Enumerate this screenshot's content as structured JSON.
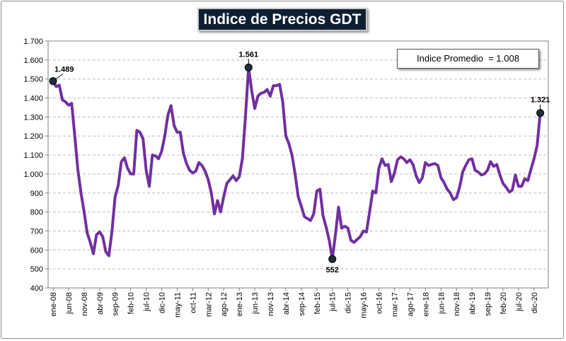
{
  "chart_data": {
    "type": "line",
    "title": "Indice de Precios GDT",
    "average_label": "Indice Promedio  = 1.008",
    "ylim": [
      400,
      1700
    ],
    "y_ticks": [
      "400",
      "500",
      "600",
      "700",
      "800",
      "900",
      "1.000",
      "1.100",
      "1.200",
      "1.300",
      "1.400",
      "1.500",
      "1.600",
      "1.700"
    ],
    "y_tick_values": [
      400,
      500,
      600,
      700,
      800,
      900,
      1000,
      1100,
      1200,
      1300,
      1400,
      1500,
      1600,
      1700
    ],
    "x_tick_labels": [
      "ene-08",
      "jun-08",
      "nov-08",
      "abr-09",
      "sep-09",
      "feb-10",
      "jul-10",
      "dic-10",
      "may-11",
      "oct-11",
      "mar-12",
      "ago-12",
      "ene-13",
      "jun-13",
      "nov-13",
      "abr-14",
      "sep-14",
      "feb-15",
      "jul-15",
      "dic-15",
      "may-16",
      "oct-16",
      "mar-17",
      "ago-17",
      "ene-18",
      "jun-18",
      "nov-18",
      "abr-19",
      "sep-19",
      "feb-20",
      "jul-20",
      "dic-20"
    ],
    "x_tick_index": [
      0,
      5,
      10,
      15,
      20,
      25,
      30,
      35,
      40,
      45,
      50,
      55,
      60,
      65,
      70,
      75,
      80,
      85,
      90,
      95,
      100,
      105,
      110,
      115,
      120,
      125,
      130,
      135,
      140,
      145,
      150,
      155
    ],
    "x_count": 159,
    "series": [
      {
        "name": "Indice de Precios GDT",
        "color": "#7030a0",
        "points": [
          [
            0,
            1489
          ],
          [
            1,
            1460
          ],
          [
            2,
            1468
          ],
          [
            3,
            1390
          ],
          [
            4,
            1380
          ],
          [
            5,
            1362
          ],
          [
            6,
            1372
          ],
          [
            7,
            1200
          ],
          [
            8,
            1020
          ],
          [
            9,
            900
          ],
          [
            10,
            800
          ],
          [
            11,
            690
          ],
          [
            12,
            640
          ],
          [
            13,
            580
          ],
          [
            14,
            680
          ],
          [
            15,
            695
          ],
          [
            16,
            670
          ],
          [
            17,
            590
          ],
          [
            18,
            570
          ],
          [
            19,
            700
          ],
          [
            20,
            880
          ],
          [
            21,
            940
          ],
          [
            22,
            1065
          ],
          [
            23,
            1085
          ],
          [
            24,
            1030
          ],
          [
            25,
            1000
          ],
          [
            26,
            1000
          ],
          [
            27,
            1230
          ],
          [
            28,
            1220
          ],
          [
            29,
            1185
          ],
          [
            30,
            1020
          ],
          [
            31,
            935
          ],
          [
            32,
            1100
          ],
          [
            33,
            1095
          ],
          [
            34,
            1080
          ],
          [
            35,
            1120
          ],
          [
            36,
            1200
          ],
          [
            37,
            1310
          ],
          [
            38,
            1360
          ],
          [
            39,
            1255
          ],
          [
            40,
            1220
          ],
          [
            41,
            1220
          ],
          [
            42,
            1110
          ],
          [
            43,
            1055
          ],
          [
            44,
            1020
          ],
          [
            45,
            1005
          ],
          [
            46,
            1015
          ],
          [
            47,
            1060
          ],
          [
            48,
            1045
          ],
          [
            49,
            1015
          ],
          [
            50,
            970
          ],
          [
            51,
            900
          ],
          [
            52,
            790
          ],
          [
            53,
            860
          ],
          [
            54,
            800
          ],
          [
            55,
            880
          ],
          [
            56,
            950
          ],
          [
            57,
            970
          ],
          [
            58,
            990
          ],
          [
            59,
            965
          ],
          [
            60,
            985
          ],
          [
            61,
            1080
          ],
          [
            62,
            1300
          ],
          [
            63,
            1561
          ],
          [
            64,
            1440
          ],
          [
            65,
            1345
          ],
          [
            66,
            1410
          ],
          [
            67,
            1425
          ],
          [
            68,
            1430
          ],
          [
            69,
            1445
          ],
          [
            70,
            1410
          ],
          [
            71,
            1465
          ],
          [
            72,
            1465
          ],
          [
            73,
            1472
          ],
          [
            74,
            1380
          ],
          [
            75,
            1200
          ],
          [
            76,
            1160
          ],
          [
            77,
            1100
          ],
          [
            78,
            1000
          ],
          [
            79,
            880
          ],
          [
            80,
            830
          ],
          [
            81,
            775
          ],
          [
            82,
            765
          ],
          [
            83,
            755
          ],
          [
            84,
            790
          ],
          [
            85,
            910
          ],
          [
            86,
            920
          ],
          [
            87,
            780
          ],
          [
            88,
            720
          ],
          [
            89,
            650
          ],
          [
            90,
            552
          ],
          [
            91,
            680
          ],
          [
            92,
            825
          ],
          [
            93,
            715
          ],
          [
            94,
            725
          ],
          [
            95,
            715
          ],
          [
            96,
            650
          ],
          [
            97,
            640
          ],
          [
            98,
            655
          ],
          [
            99,
            670
          ],
          [
            100,
            700
          ],
          [
            101,
            695
          ],
          [
            102,
            800
          ],
          [
            103,
            910
          ],
          [
            104,
            900
          ],
          [
            105,
            1030
          ],
          [
            106,
            1080
          ],
          [
            107,
            1045
          ],
          [
            108,
            1050
          ],
          [
            109,
            960
          ],
          [
            110,
            1005
          ],
          [
            111,
            1075
          ],
          [
            112,
            1090
          ],
          [
            113,
            1080
          ],
          [
            114,
            1060
          ],
          [
            115,
            1075
          ],
          [
            116,
            1050
          ],
          [
            117,
            990
          ],
          [
            118,
            955
          ],
          [
            119,
            980
          ],
          [
            120,
            1060
          ],
          [
            121,
            1045
          ],
          [
            122,
            1050
          ],
          [
            123,
            1055
          ],
          [
            124,
            1045
          ],
          [
            125,
            980
          ],
          [
            126,
            955
          ],
          [
            127,
            920
          ],
          [
            128,
            900
          ],
          [
            129,
            865
          ],
          [
            130,
            875
          ],
          [
            131,
            930
          ],
          [
            132,
            1010
          ],
          [
            133,
            1045
          ],
          [
            134,
            1075
          ],
          [
            135,
            1080
          ],
          [
            136,
            1020
          ],
          [
            137,
            1010
          ],
          [
            138,
            995
          ],
          [
            139,
            1000
          ],
          [
            140,
            1020
          ],
          [
            141,
            1065
          ],
          [
            142,
            1040
          ],
          [
            143,
            1050
          ],
          [
            144,
            995
          ],
          [
            145,
            950
          ],
          [
            146,
            930
          ],
          [
            147,
            905
          ],
          [
            148,
            915
          ],
          [
            149,
            995
          ],
          [
            150,
            935
          ],
          [
            151,
            935
          ],
          [
            152,
            975
          ],
          [
            153,
            965
          ],
          [
            154,
            1025
          ],
          [
            155,
            1080
          ],
          [
            156,
            1150
          ],
          [
            157,
            1321
          ]
        ]
      }
    ],
    "annotations": [
      {
        "label": "1.489",
        "index": 0,
        "value": 1489,
        "pos": "above-right"
      },
      {
        "label": "1.561",
        "index": 63,
        "value": 1561,
        "pos": "above"
      },
      {
        "label": "552",
        "index": 90,
        "value": 552,
        "pos": "below"
      },
      {
        "label": "1.321",
        "index": 157,
        "value": 1321,
        "pos": "above"
      }
    ],
    "grid": true
  }
}
